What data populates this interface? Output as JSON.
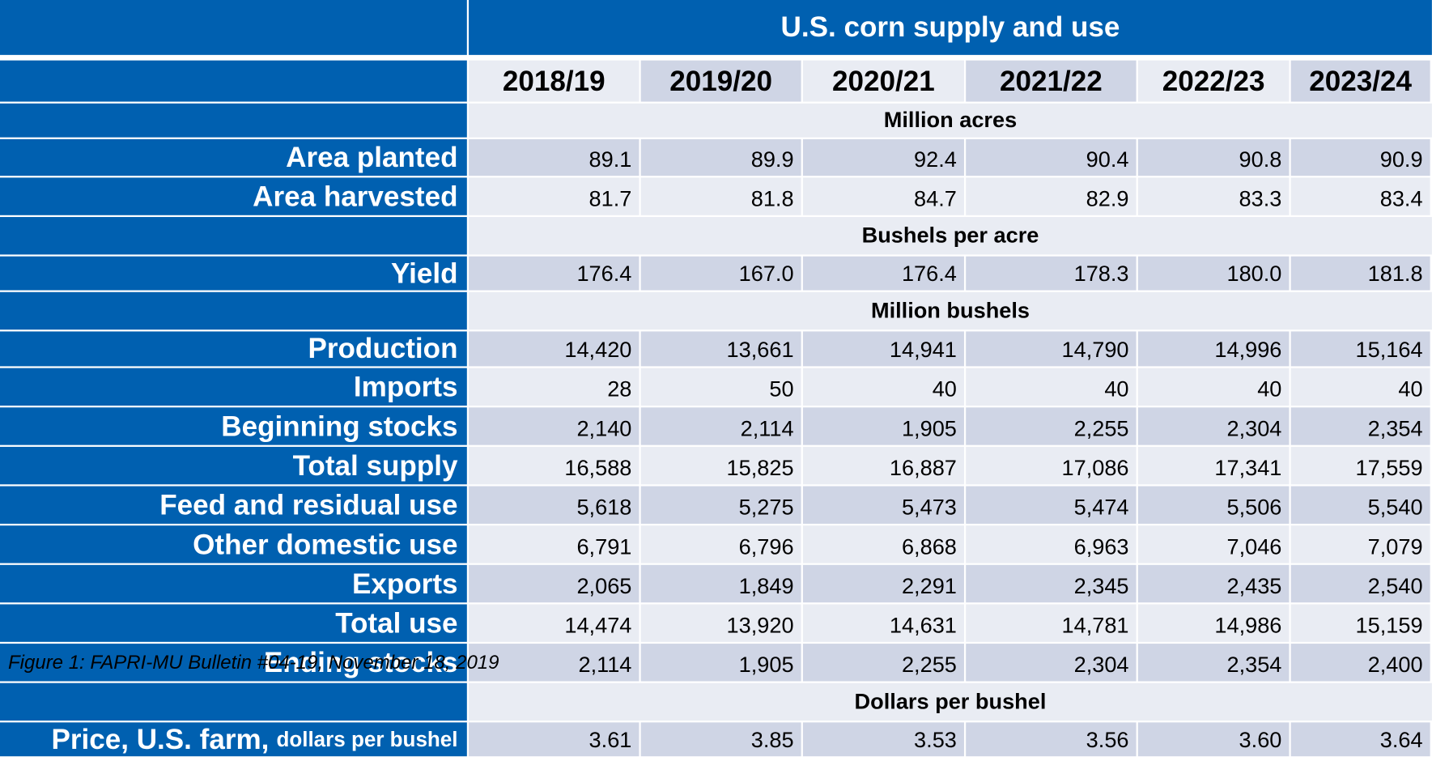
{
  "table": {
    "title": "U.S. corn supply and use",
    "years": [
      "2018/19",
      "2019/20",
      "2020/21",
      "2021/22",
      "2022/23",
      "2023/24"
    ],
    "rows": [
      {
        "type": "unit",
        "label": "Million acres"
      },
      {
        "type": "data",
        "label": "Area planted",
        "values": [
          "89.1",
          "89.9",
          "92.4",
          "90.4",
          "90.8",
          "90.9"
        ]
      },
      {
        "type": "data",
        "label": "Area harvested",
        "values": [
          "81.7",
          "81.8",
          "84.7",
          "82.9",
          "83.3",
          "83.4"
        ]
      },
      {
        "type": "unit",
        "label": "Bushels per acre"
      },
      {
        "type": "data",
        "label": "Yield",
        "values": [
          "176.4",
          "167.0",
          "176.4",
          "178.3",
          "180.0",
          "181.8"
        ]
      },
      {
        "type": "unit",
        "label": "Million bushels"
      },
      {
        "type": "data",
        "label": "Production",
        "values": [
          "14,420",
          "13,661",
          "14,941",
          "14,790",
          "14,996",
          "15,164"
        ]
      },
      {
        "type": "data",
        "label": "Imports",
        "values": [
          "28",
          "50",
          "40",
          "40",
          "40",
          "40"
        ]
      },
      {
        "type": "data",
        "label": "Beginning stocks",
        "values": [
          "2,140",
          "2,114",
          "1,905",
          "2,255",
          "2,304",
          "2,354"
        ]
      },
      {
        "type": "data",
        "label": "Total supply",
        "values": [
          "16,588",
          "15,825",
          "16,887",
          "17,086",
          "17,341",
          "17,559"
        ]
      },
      {
        "type": "data",
        "label": "Feed and residual use",
        "values": [
          "5,618",
          "5,275",
          "5,473",
          "5,474",
          "5,506",
          "5,540"
        ]
      },
      {
        "type": "data",
        "label": "Other domestic use",
        "values": [
          "6,791",
          "6,796",
          "6,868",
          "6,963",
          "7,046",
          "7,079"
        ]
      },
      {
        "type": "data",
        "label": "Exports",
        "values": [
          "2,065",
          "1,849",
          "2,291",
          "2,345",
          "2,435",
          "2,540"
        ]
      },
      {
        "type": "data",
        "label": "Total use",
        "values": [
          "14,474",
          "13,920",
          "14,631",
          "14,781",
          "14,986",
          "15,159"
        ]
      },
      {
        "type": "data",
        "label": "Ending stocks",
        "values": [
          "2,114",
          "1,905",
          "2,255",
          "2,304",
          "2,354",
          "2,400"
        ]
      },
      {
        "type": "unit",
        "label": "Dollars per bushel"
      },
      {
        "type": "data",
        "label": "Price, U.S. farm,",
        "label_suffix": "dollars per bushel",
        "values": [
          "3.61",
          "3.85",
          "3.53",
          "3.56",
          "3.60",
          "3.64"
        ]
      }
    ]
  },
  "caption": "Figure 1: FAPRI-MU Bulletin #04-19, November 18, 2019"
}
